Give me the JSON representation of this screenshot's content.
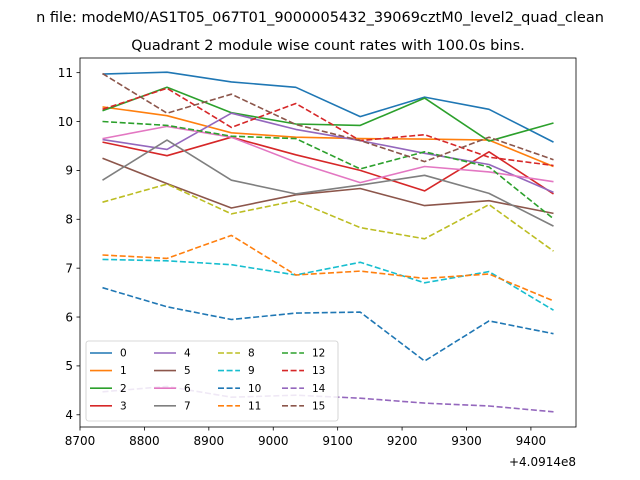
{
  "chart_data": {
    "type": "line",
    "suptitle": "n file: modeM0/AS1T05_067T01_9000005432_39069cztM0_level2_quad_clean",
    "title": "Quadrant 2 module wise count rates with 100.0s bins.",
    "xlabel": "",
    "ylabel": "",
    "x_offset_label": "+4.0914e8",
    "xlim": [
      8700,
      9470
    ],
    "ylim": [
      3.75,
      11.3
    ],
    "x_ticks": [
      8700,
      8800,
      8900,
      9000,
      9100,
      9200,
      9300,
      9400
    ],
    "y_ticks": [
      4,
      5,
      6,
      7,
      8,
      9,
      10,
      11
    ],
    "x": [
      8735,
      8835,
      8935,
      9035,
      9135,
      9235,
      9335,
      9435
    ],
    "legend_position": "lower-left",
    "legend_columns": 4,
    "series": [
      {
        "name": "0",
        "color": "#1f77b4",
        "dash": "solid",
        "values": [
          10.97,
          11.01,
          10.81,
          10.7,
          10.1,
          10.5,
          10.25,
          9.58
        ]
      },
      {
        "name": "1",
        "color": "#ff7f0e",
        "dash": "solid",
        "values": [
          10.3,
          10.12,
          9.77,
          9.68,
          9.65,
          9.64,
          9.62,
          9.08
        ]
      },
      {
        "name": "2",
        "color": "#2ca02c",
        "dash": "solid",
        "values": [
          10.22,
          10.7,
          10.18,
          9.95,
          9.92,
          10.48,
          9.6,
          9.97
        ]
      },
      {
        "name": "3",
        "color": "#d62728",
        "dash": "solid",
        "values": [
          9.58,
          9.3,
          9.68,
          9.32,
          9.0,
          8.58,
          9.38,
          8.52
        ]
      },
      {
        "name": "4",
        "color": "#9467bd",
        "dash": "solid",
        "values": [
          9.63,
          9.43,
          10.17,
          9.84,
          9.61,
          9.35,
          9.12,
          8.55
        ]
      },
      {
        "name": "5",
        "color": "#8c564b",
        "dash": "solid",
        "values": [
          9.25,
          8.73,
          8.23,
          8.5,
          8.63,
          8.28,
          8.38,
          8.12
        ]
      },
      {
        "name": "6",
        "color": "#e377c2",
        "dash": "solid",
        "values": [
          9.65,
          9.9,
          9.68,
          9.17,
          8.75,
          9.08,
          8.97,
          8.77
        ]
      },
      {
        "name": "7",
        "color": "#7f7f7f",
        "dash": "solid",
        "values": [
          8.8,
          9.62,
          8.8,
          8.52,
          8.7,
          8.9,
          8.53,
          7.86
        ]
      },
      {
        "name": "8",
        "color": "#bcbd22",
        "dash": "dashed",
        "values": [
          8.35,
          8.72,
          8.11,
          8.38,
          7.83,
          7.6,
          8.3,
          7.35
        ]
      },
      {
        "name": "9",
        "color": "#17becf",
        "dash": "dashed",
        "values": [
          7.18,
          7.15,
          7.07,
          6.86,
          7.12,
          6.7,
          6.93,
          6.14
        ]
      },
      {
        "name": "10",
        "color": "#1f77b4",
        "dash": "dashed",
        "values": [
          6.6,
          6.21,
          5.95,
          6.08,
          6.1,
          5.1,
          5.92,
          5.66
        ]
      },
      {
        "name": "11",
        "color": "#ff7f0e",
        "dash": "dashed",
        "values": [
          7.27,
          7.2,
          7.67,
          6.86,
          6.94,
          6.79,
          6.88,
          6.33
        ]
      },
      {
        "name": "12",
        "color": "#2ca02c",
        "dash": "dashed",
        "values": [
          10.0,
          9.92,
          9.7,
          9.65,
          9.03,
          9.38,
          9.07,
          8.01
        ]
      },
      {
        "name": "13",
        "color": "#d62728",
        "dash": "dashed",
        "values": [
          10.25,
          10.68,
          9.88,
          10.37,
          9.61,
          9.73,
          9.27,
          9.1
        ]
      },
      {
        "name": "14",
        "color": "#9467bd",
        "dash": "dashed",
        "values": [
          4.47,
          4.58,
          4.36,
          4.4,
          4.34,
          4.24,
          4.18,
          4.06
        ]
      },
      {
        "name": "15",
        "color": "#8c564b",
        "dash": "dashed",
        "values": [
          10.98,
          10.17,
          10.56,
          9.94,
          9.61,
          9.18,
          9.68,
          9.22
        ]
      }
    ]
  }
}
